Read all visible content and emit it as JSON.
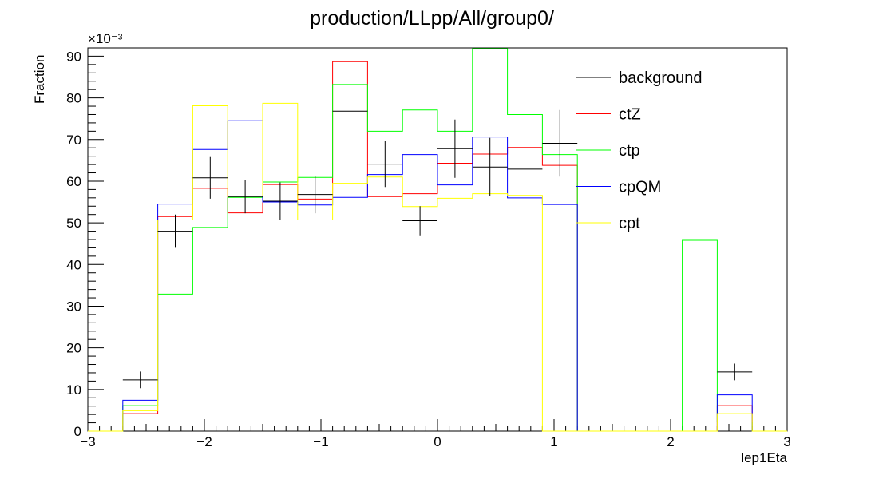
{
  "chart_data": {
    "type": "histogram",
    "title": "production/LLpp/All/group0/",
    "xlabel": "lep1Eta",
    "ylabel": "Fraction",
    "y_multiplier_label": "×10⁻³",
    "xlim": [
      -3,
      3
    ],
    "ylim": [
      0,
      92
    ],
    "x_ticks": [
      -3,
      -2,
      -1,
      0,
      1,
      2,
      3
    ],
    "x_tick_labels": [
      "−3",
      "−2",
      "−1",
      "0",
      "1",
      "2",
      "3"
    ],
    "y_ticks": [
      0,
      10,
      20,
      30,
      40,
      50,
      60,
      70,
      80,
      90
    ],
    "y_tick_labels": [
      "0",
      "10",
      "20",
      "30",
      "40",
      "50",
      "60",
      "70",
      "80",
      "90"
    ],
    "bin_edges": [
      -3.0,
      -2.7,
      -2.4,
      -2.1,
      -1.8,
      -1.5,
      -1.2,
      -0.9,
      -0.6,
      -0.3,
      0.0,
      0.3,
      0.6,
      0.9,
      1.2,
      1.5,
      1.8,
      2.1,
      2.4,
      2.7,
      3.0
    ],
    "legend_position": "top-right",
    "series": [
      {
        "name": "background",
        "color": "#000000",
        "style": "points",
        "values": [
          0,
          12.3,
          48,
          60.8,
          56.3,
          55.2,
          56.8,
          76.8,
          64.1,
          50.5,
          67.8,
          63.4,
          62.9,
          69.1,
          0,
          0,
          0,
          0,
          14.2,
          0
        ],
        "errors": [
          0,
          2.0,
          4.0,
          5.0,
          4.0,
          4.5,
          4.5,
          8.5,
          5.5,
          3.5,
          7.0,
          7.0,
          6.5,
          8.0,
          0,
          0,
          0,
          0,
          2.0,
          0
        ]
      },
      {
        "name": "ctZ",
        "color": "#ff0000",
        "style": "step",
        "values": [
          0,
          4.2,
          51.5,
          58.3,
          52.4,
          59.2,
          55.7,
          88.7,
          56.3,
          57.0,
          64.3,
          66.5,
          68.1,
          63.8,
          0,
          0,
          0,
          0,
          6.1,
          0
        ]
      },
      {
        "name": "ctp",
        "color": "#00ff00",
        "style": "step",
        "values": [
          0,
          6.1,
          32.9,
          48.9,
          56.1,
          59.8,
          60.9,
          83.2,
          72.0,
          77.1,
          72.0,
          91.8,
          76.0,
          66.4,
          0,
          0,
          0,
          45.8,
          2.2,
          0
        ]
      },
      {
        "name": "cpQM",
        "color": "#0000ff",
        "style": "step",
        "values": [
          0,
          7.4,
          54.5,
          67.6,
          74.5,
          55.0,
          54.3,
          56.1,
          61.6,
          66.4,
          59.1,
          70.6,
          56.0,
          54.4,
          0,
          0,
          0,
          0,
          8.7,
          0
        ]
      },
      {
        "name": "cpt",
        "color": "#ffff00",
        "style": "step",
        "values": [
          0,
          4.9,
          50.7,
          78.1,
          56.4,
          78.7,
          50.7,
          59.5,
          61.0,
          53.9,
          55.9,
          57.0,
          56.6,
          0,
          0,
          0,
          0,
          0,
          4.2,
          0
        ]
      }
    ]
  }
}
